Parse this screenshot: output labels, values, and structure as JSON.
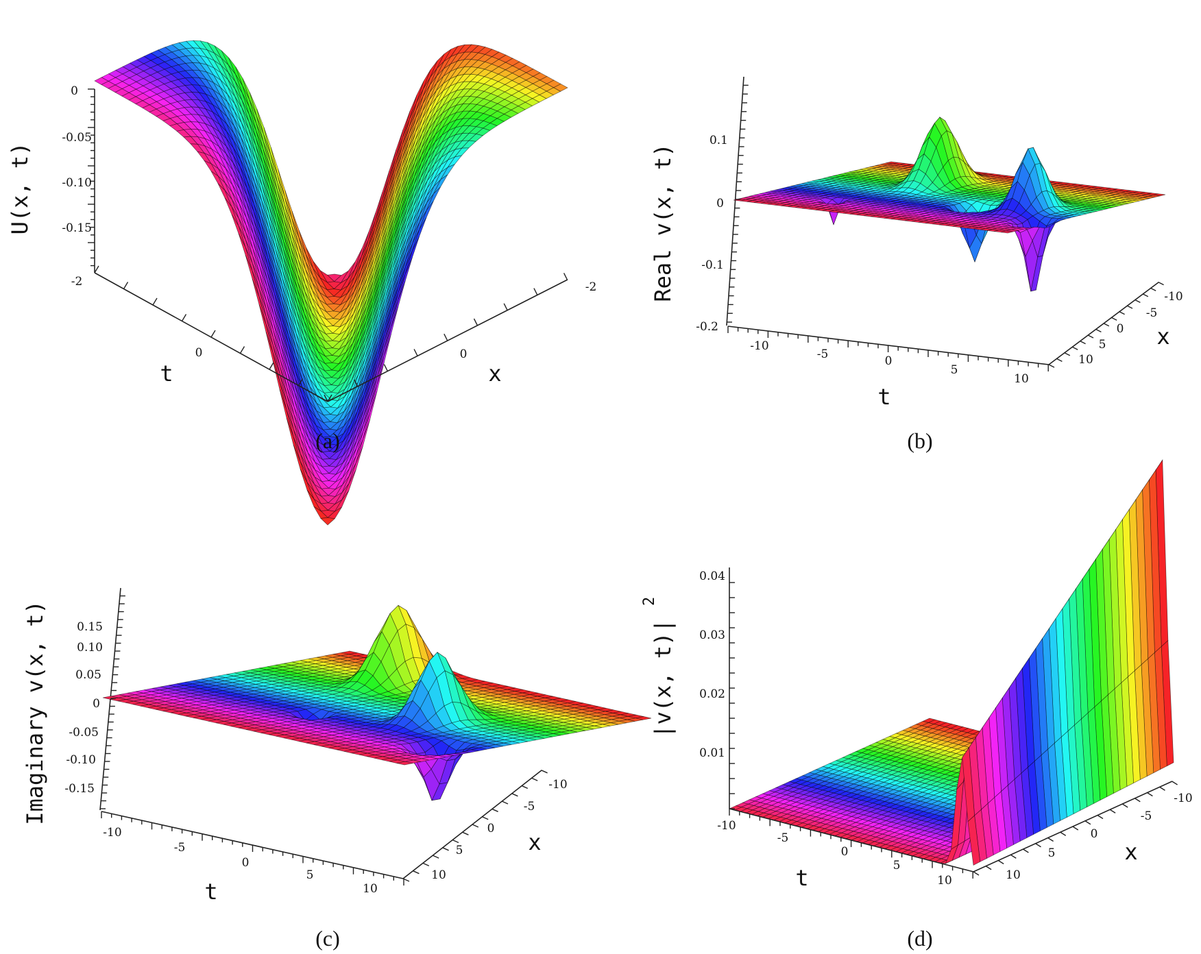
{
  "chart_data": [
    {
      "id": "a",
      "type": "surface",
      "caption": "(a)",
      "zlabel": "U(x, t)",
      "xlabel": "x",
      "ylabel": "t",
      "z_ticks": [
        "0",
        "-0.05",
        "-0.10",
        "-0.15"
      ],
      "t_ticks": [
        "-2",
        "0"
      ],
      "x_ticks": [
        "-2",
        "0"
      ],
      "xlim": [
        -2,
        2
      ],
      "tlim": [
        -2,
        2
      ],
      "zlim": [
        -0.2,
        0
      ],
      "surface": "V-shaped trough along t = -x, minimum about -0.2 at origin",
      "colormap": "rainbow"
    },
    {
      "id": "b",
      "type": "surface",
      "caption": "(b)",
      "zlabel": "Real v(x, t)",
      "xlabel": "x",
      "ylabel": "t",
      "z_ticks": [
        "0.1",
        "0",
        "-0.1",
        "-0.2"
      ],
      "t_ticks": [
        "-10",
        "-5",
        "0",
        "5",
        "10"
      ],
      "x_ticks": [
        "-10",
        "-5",
        "0",
        "5",
        "10"
      ],
      "xlim": [
        -10,
        10
      ],
      "tlim": [
        -10,
        10
      ],
      "zlim": [
        -0.2,
        0.15
      ],
      "surface": "flat plane with two peaks (~0.18) and two troughs (~-0.2) along diagonal",
      "colormap": "rainbow"
    },
    {
      "id": "c",
      "type": "surface",
      "caption": "(c)",
      "zlabel": "Imaginary v(x, t)",
      "xlabel": "x",
      "ylabel": "t",
      "z_ticks": [
        "0.15",
        "0.10",
        "0.05",
        "0",
        "-0.05",
        "-0.10",
        "-0.15"
      ],
      "t_ticks": [
        "-10",
        "-5",
        "0",
        "5",
        "10"
      ],
      "x_ticks": [
        "-10",
        "-5",
        "0",
        "5",
        "10"
      ],
      "xlim": [
        -10,
        10
      ],
      "tlim": [
        -10,
        10
      ],
      "zlim": [
        -0.15,
        0.15
      ],
      "surface": "flat plane with two peaks (~0.2) and two troughs (~-0.15) along diagonal",
      "colormap": "rainbow"
    },
    {
      "id": "d",
      "type": "surface",
      "caption": "(d)",
      "zlabel": "|v(x, t)|",
      "zlabel_sup": "2",
      "xlabel": "x",
      "ylabel": "t",
      "z_ticks": [
        "0.04",
        "0.03",
        "0.02",
        "0.01"
      ],
      "t_ticks": [
        "-10",
        "-5",
        "0",
        "5",
        "10"
      ],
      "x_ticks": [
        "-10",
        "-5",
        "0",
        "5",
        "10"
      ],
      "xlim": [
        -10,
        10
      ],
      "tlim": [
        -10,
        10
      ],
      "zlim": [
        0,
        0.045
      ],
      "surface": "flat plane with a tall thin ridge (~0.055) along the line t = x",
      "colormap": "rainbow"
    }
  ]
}
